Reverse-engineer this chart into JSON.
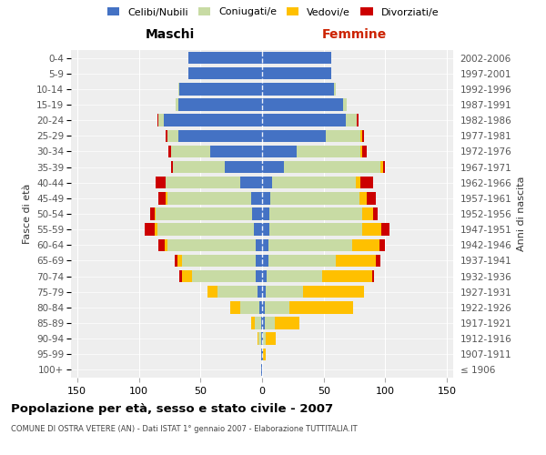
{
  "age_groups": [
    "100+",
    "95-99",
    "90-94",
    "85-89",
    "80-84",
    "75-79",
    "70-74",
    "65-69",
    "60-64",
    "55-59",
    "50-54",
    "45-49",
    "40-44",
    "35-39",
    "30-34",
    "25-29",
    "20-24",
    "15-19",
    "10-14",
    "5-9",
    "0-4"
  ],
  "birth_years": [
    "≤ 1906",
    "1907-1911",
    "1912-1916",
    "1917-1921",
    "1922-1926",
    "1927-1931",
    "1932-1936",
    "1937-1941",
    "1942-1946",
    "1947-1951",
    "1952-1956",
    "1957-1961",
    "1962-1966",
    "1967-1971",
    "1972-1976",
    "1977-1981",
    "1982-1986",
    "1987-1991",
    "1992-1996",
    "1997-2001",
    "2002-2006"
  ],
  "maschi": {
    "celibi": [
      1,
      1,
      1,
      1,
      2,
      4,
      5,
      5,
      5,
      7,
      8,
      9,
      18,
      30,
      42,
      68,
      80,
      68,
      67,
      60,
      60
    ],
    "coniugati": [
      0,
      0,
      2,
      5,
      16,
      32,
      52,
      60,
      72,
      78,
      78,
      68,
      60,
      42,
      32,
      9,
      4,
      2,
      1,
      0,
      0
    ],
    "vedovi": [
      0,
      0,
      1,
      3,
      8,
      8,
      8,
      4,
      2,
      2,
      1,
      1,
      0,
      0,
      0,
      0,
      0,
      0,
      0,
      0,
      0
    ],
    "divorziati": [
      0,
      0,
      0,
      0,
      0,
      0,
      2,
      2,
      5,
      8,
      4,
      6,
      8,
      2,
      2,
      1,
      1,
      0,
      0,
      0,
      0
    ]
  },
  "femmine": {
    "nubili": [
      0,
      1,
      1,
      2,
      2,
      3,
      4,
      5,
      5,
      6,
      6,
      7,
      8,
      18,
      28,
      52,
      68,
      66,
      58,
      56,
      56
    ],
    "coniugate": [
      0,
      0,
      2,
      8,
      20,
      30,
      45,
      55,
      68,
      75,
      75,
      72,
      68,
      78,
      52,
      28,
      9,
      3,
      2,
      0,
      0
    ],
    "vedove": [
      0,
      2,
      8,
      20,
      52,
      50,
      40,
      32,
      22,
      16,
      9,
      6,
      4,
      2,
      1,
      1,
      0,
      0,
      0,
      0,
      0
    ],
    "divorziate": [
      0,
      0,
      0,
      0,
      0,
      0,
      2,
      4,
      5,
      6,
      4,
      7,
      10,
      2,
      4,
      2,
      1,
      0,
      0,
      0,
      0
    ]
  },
  "colors": {
    "celibi_nubili": "#4472c4",
    "coniugati": "#c8dba4",
    "vedovi": "#ffc000",
    "divorziati": "#cc0000"
  },
  "xlim": 155,
  "title": "Popolazione per età, sesso e stato civile - 2007",
  "subtitle": "COMUNE DI OSTRA VETERE (AN) - Dati ISTAT 1° gennaio 2007 - Elaborazione TUTTITALIA.IT",
  "ylabel_left": "Fasce di età",
  "ylabel_right": "Anni di nascita",
  "legend_labels": [
    "Celibi/Nubili",
    "Coniugati/e",
    "Vedovi/e",
    "Divorziati/e"
  ],
  "maschi_label": "Maschi",
  "femmine_label": "Femmine",
  "bg_color": "#ffffff",
  "plot_bg_color": "#eeeeee"
}
